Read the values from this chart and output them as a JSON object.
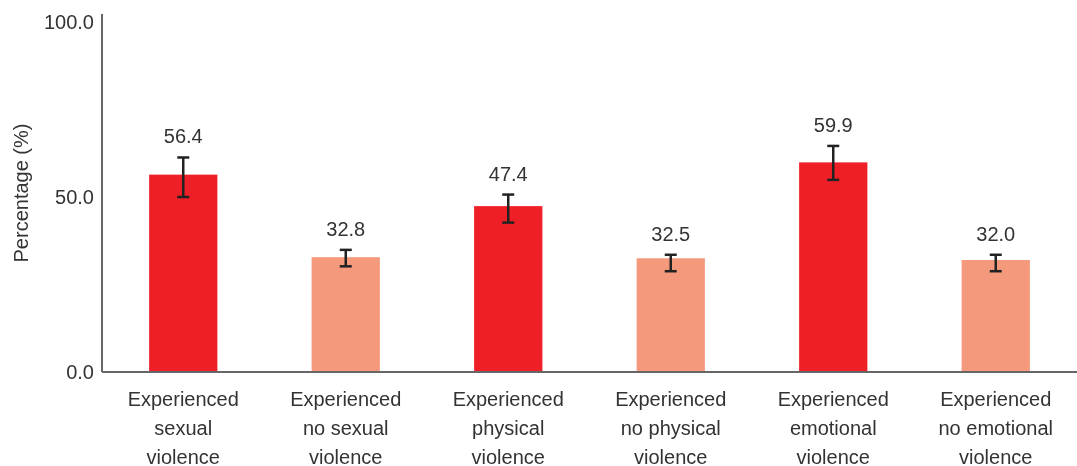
{
  "chart_data": {
    "type": "bar",
    "ylabel": "Percentage (%)",
    "categories": [
      "Experienced sexual violence",
      "Experienced no sexual violence",
      "Experienced physical violence",
      "Experienced no physical violence",
      "Experienced emotional violence",
      "Experienced no emotional violence"
    ],
    "values": [
      56.4,
      32.8,
      47.4,
      32.5,
      59.9,
      32.0
    ],
    "colors": [
      "#ee1f26",
      "#f4997b",
      "#ee1f26",
      "#f4997b",
      "#ee1f26",
      "#f4997b"
    ],
    "errors": [
      [
        50.0,
        61.3
      ],
      [
        30.2,
        34.9
      ],
      [
        42.7,
        50.7
      ],
      [
        28.8,
        33.5
      ],
      [
        54.9,
        64.6
      ],
      [
        28.8,
        33.5
      ]
    ],
    "value_labels": [
      "56.4",
      "32.8",
      "47.4",
      "32.5",
      "59.9",
      "32.0"
    ],
    "ylim": [
      0,
      102.3
    ],
    "yticks": [
      {
        "value": 0,
        "label": "0.0"
      },
      {
        "value": 50,
        "label": "50.0"
      },
      {
        "value": 100,
        "label": "100.0"
      }
    ],
    "grid": false
  }
}
